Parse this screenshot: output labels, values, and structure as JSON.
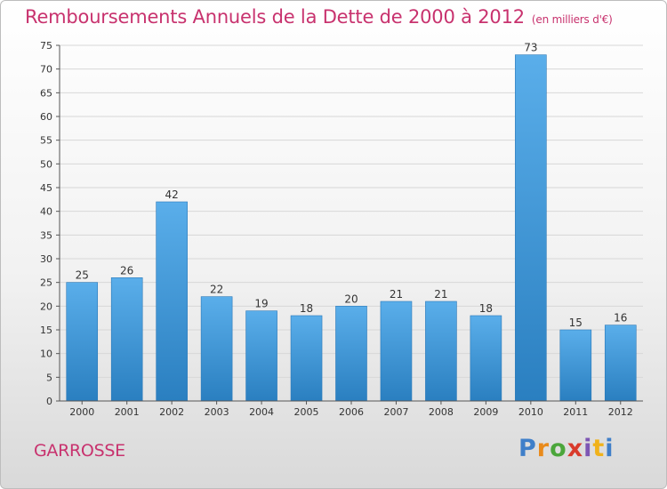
{
  "title": "Remboursements Annuels de la Dette de 2000 à 2012",
  "subtitle": "(en milliers d'€)",
  "commune": "GARROSSE",
  "logo": {
    "text": "Proxiti",
    "letter_colors": [
      "#3f7fc9",
      "#e98a1b",
      "#4ba63b",
      "#d93a2b",
      "#7d56b4",
      "#f0b21b",
      "#3f7fc9"
    ]
  },
  "colors": {
    "title": "#c8326e",
    "bar_light": "#5aaeea",
    "bar_dark": "#2a7fc0",
    "grid": "#d7d7d7",
    "axis": "#555555"
  },
  "chart_data": {
    "type": "bar",
    "categories": [
      "2000",
      "2001",
      "2002",
      "2003",
      "2004",
      "2005",
      "2006",
      "2007",
      "2008",
      "2009",
      "2010",
      "2011",
      "2012"
    ],
    "values": [
      25,
      26,
      42,
      22,
      19,
      18,
      20,
      21,
      21,
      18,
      73,
      15,
      16
    ],
    "yticks": [
      0,
      5,
      10,
      15,
      20,
      25,
      30,
      35,
      40,
      45,
      50,
      55,
      60,
      65,
      70,
      75
    ],
    "ylim": [
      0,
      75
    ],
    "grid": true,
    "title": "Remboursements Annuels de la Dette de 2000 à 2012",
    "xlabel": "",
    "ylabel": ""
  }
}
